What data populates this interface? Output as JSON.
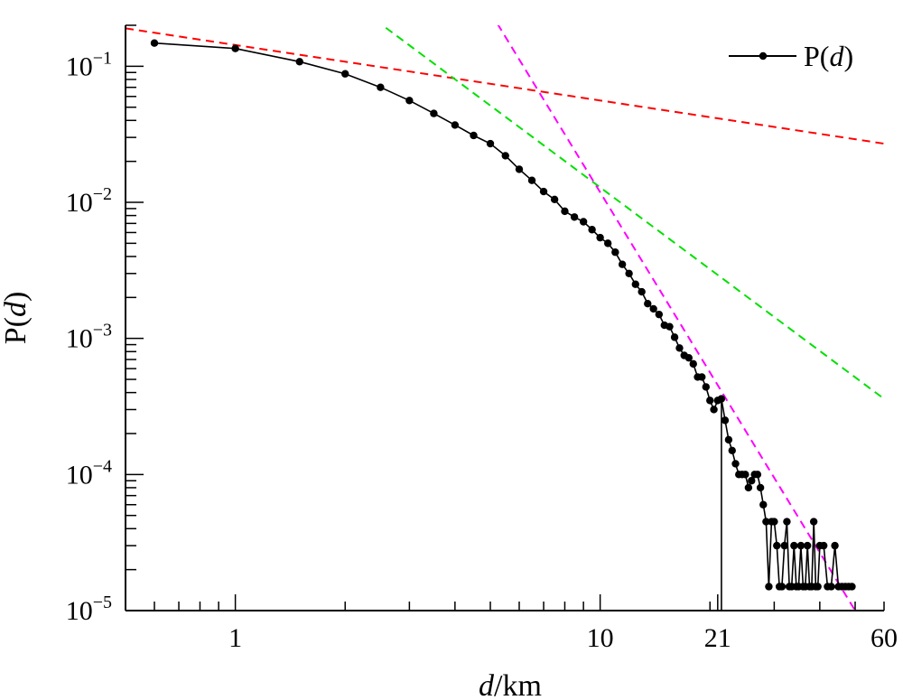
{
  "chart_data": {
    "type": "line",
    "xscale": "log",
    "yscale": "log",
    "xlim": [
      0.5,
      60
    ],
    "ylim": [
      1e-05,
      0.2
    ],
    "x_tick_labels": [
      "1",
      "10",
      "21",
      "60"
    ],
    "x_tick_values": [
      1,
      10,
      21,
      60
    ],
    "y_tick_base": "10",
    "y_tick_exponents": [
      "−1",
      "−2",
      "−3",
      "−4",
      "−5"
    ],
    "y_tick_values": [
      0.1,
      0.01,
      0.001,
      0.0001,
      1e-05
    ],
    "xlabel_italic": "d",
    "xlabel_unit": "/km",
    "ylabel_prefix": "P(",
    "ylabel_italic": "d",
    "ylabel_suffix": ")",
    "legend_position": "top-right",
    "grid": false,
    "series": [
      {
        "name_prefix": "P(",
        "name_italic": "d",
        "name_suffix": ")",
        "color": "#000000",
        "style": "line-with-markers",
        "x": [
          0.6,
          1.0,
          1.5,
          2.0,
          2.5,
          3.0,
          3.5,
          4.0,
          4.5,
          5.0,
          5.5,
          6.0,
          6.5,
          7.0,
          7.5,
          8.0,
          8.5,
          9.0,
          9.5,
          10.0,
          10.5,
          11.0,
          11.5,
          12.0,
          12.5,
          13.0,
          13.5,
          14.0,
          14.5,
          15.0,
          15.5,
          16.0,
          16.5,
          17.0,
          17.5,
          18.0,
          18.5,
          19.0,
          19.5,
          20.0,
          20.5,
          21.0,
          21.5,
          22.0,
          22.5,
          23.0,
          23.5,
          24.0,
          24.5,
          25.0,
          25.5,
          26.0,
          26.5,
          27.0,
          27.5,
          28.0,
          28.5,
          29.0,
          29.5,
          30.0,
          30.5,
          31.0,
          31.5,
          32.0,
          32.5,
          33.0,
          33.5,
          34.0,
          34.5,
          35.0,
          35.5,
          36.0,
          36.5,
          37.0,
          37.5,
          38.0,
          38.5,
          39.0,
          39.5,
          40.0,
          41.0,
          42.0,
          43.0,
          44.0,
          45.0,
          46.0,
          47.0,
          48.0,
          49.0
        ],
        "y": [
          0.148,
          0.135,
          0.108,
          0.088,
          0.07,
          0.056,
          0.045,
          0.037,
          0.031,
          0.027,
          0.022,
          0.0175,
          0.0145,
          0.012,
          0.0105,
          0.0086,
          0.0078,
          0.0072,
          0.0063,
          0.0055,
          0.005,
          0.0043,
          0.0035,
          0.003,
          0.0025,
          0.0022,
          0.0018,
          0.00165,
          0.0015,
          0.00125,
          0.00122,
          0.00102,
          0.00085,
          0.00075,
          0.00072,
          0.00065,
          0.00052,
          0.00052,
          0.00044,
          0.00035,
          0.0003,
          0.00035,
          0.00036,
          0.00025,
          0.00018,
          0.00015,
          0.00012,
          0.0001,
          0.0001,
          0.0001,
          8e-05,
          9e-05,
          0.0001,
          0.0001,
          8e-05,
          6e-05,
          4.5e-05,
          1.5e-05,
          4.5e-05,
          4.5e-05,
          3e-05,
          1.5e-05,
          1.5e-05,
          3e-05,
          4.5e-05,
          1.5e-05,
          1.5e-05,
          3e-05,
          1.5e-05,
          1.5e-05,
          3e-05,
          1.5e-05,
          1.5e-05,
          3e-05,
          1.5e-05,
          1.5e-05,
          4.5e-05,
          1.5e-05,
          1.5e-05,
          3e-05,
          3e-05,
          1.5e-05,
          1.5e-05,
          3e-05,
          1.5e-05,
          1.5e-05,
          1.5e-05,
          1.5e-05,
          1.5e-05
        ],
        "drop_line_x": 21.5
      }
    ],
    "fit_lines": [
      {
        "color": "#ff0000",
        "style": "dashed",
        "x": [
          0.5,
          60
        ],
        "y": [
          0.19,
          0.027
        ]
      },
      {
        "color": "#00e000",
        "style": "dashed",
        "x": [
          1.6,
          60
        ],
        "y": [
          0.5,
          0.00036
        ]
      },
      {
        "color": "#ff00ff",
        "style": "dashed",
        "x": [
          5.0,
          50
        ],
        "y": [
          0.25,
          1e-05
        ]
      }
    ]
  }
}
